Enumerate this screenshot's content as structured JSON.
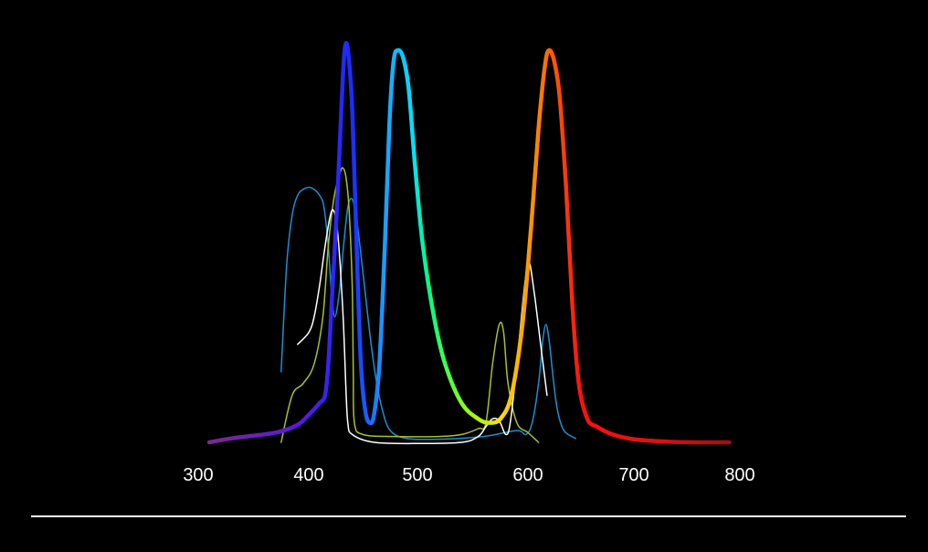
{
  "chart_data": {
    "type": "line",
    "title": "",
    "xlabel": "",
    "ylabel": "",
    "xlim": [
      300,
      800
    ],
    "ylim": [
      0,
      1
    ],
    "grid": false,
    "legend": "none",
    "xticks": [
      300,
      400,
      500,
      600,
      700,
      800
    ],
    "xtick_labels": [
      "300",
      "400",
      "500",
      "600",
      "700",
      "800"
    ],
    "background": "#000000",
    "series": [
      {
        "color_stops": [
          {
            "x": 310,
            "color": "#7a2a8a"
          },
          {
            "x": 390,
            "color": "#5a18e0"
          },
          {
            "x": 440,
            "color": "#1a2cff"
          },
          {
            "x": 470,
            "color": "#1aa0ff"
          },
          {
            "x": 495,
            "color": "#00e0ff"
          },
          {
            "x": 510,
            "color": "#00ff80"
          },
          {
            "x": 540,
            "color": "#80ff20"
          },
          {
            "x": 575,
            "color": "#ffe000"
          },
          {
            "x": 610,
            "color": "#ff8000"
          },
          {
            "x": 650,
            "color": "#ff1010"
          },
          {
            "x": 720,
            "color": "#e01010"
          },
          {
            "x": 800,
            "color": "#a01010"
          }
        ],
        "stroke_width": 4.5,
        "points": [
          [
            310,
            0.0
          ],
          [
            330,
            0.01
          ],
          [
            370,
            0.025
          ],
          [
            390,
            0.045
          ],
          [
            400,
            0.07
          ],
          [
            410,
            0.1
          ],
          [
            415,
            0.12
          ],
          [
            418,
            0.2
          ],
          [
            422,
            0.4
          ],
          [
            426,
            0.6
          ],
          [
            430,
            0.85
          ],
          [
            433,
            1.0
          ],
          [
            436,
            1.0
          ],
          [
            440,
            0.85
          ],
          [
            444,
            0.5
          ],
          [
            448,
            0.2
          ],
          [
            452,
            0.08
          ],
          [
            456,
            0.05
          ],
          [
            460,
            0.07
          ],
          [
            465,
            0.2
          ],
          [
            470,
            0.5
          ],
          [
            474,
            0.8
          ],
          [
            478,
            0.97
          ],
          [
            482,
            1.0
          ],
          [
            487,
            0.98
          ],
          [
            492,
            0.9
          ],
          [
            498,
            0.7
          ],
          [
            505,
            0.5
          ],
          [
            515,
            0.32
          ],
          [
            525,
            0.2
          ],
          [
            540,
            0.1
          ],
          [
            555,
            0.06
          ],
          [
            565,
            0.05
          ],
          [
            575,
            0.06
          ],
          [
            585,
            0.12
          ],
          [
            595,
            0.3
          ],
          [
            603,
            0.55
          ],
          [
            610,
            0.8
          ],
          [
            616,
            0.96
          ],
          [
            620,
            1.0
          ],
          [
            625,
            0.97
          ],
          [
            630,
            0.88
          ],
          [
            636,
            0.65
          ],
          [
            642,
            0.35
          ],
          [
            648,
            0.15
          ],
          [
            656,
            0.06
          ],
          [
            665,
            0.04
          ],
          [
            680,
            0.02
          ],
          [
            700,
            0.008
          ],
          [
            730,
            0.002
          ],
          [
            760,
            0.0
          ],
          [
            790,
            0.0
          ]
        ]
      },
      {
        "color": "#1a90d0",
        "stroke_width": 1.5,
        "points": [
          [
            375,
            0.18
          ],
          [
            380,
            0.45
          ],
          [
            385,
            0.58
          ],
          [
            390,
            0.63
          ],
          [
            395,
            0.645
          ],
          [
            400,
            0.65
          ],
          [
            405,
            0.645
          ],
          [
            410,
            0.63
          ],
          [
            414,
            0.6
          ],
          [
            418,
            0.5
          ],
          [
            421,
            0.38
          ],
          [
            424,
            0.32
          ],
          [
            428,
            0.38
          ],
          [
            432,
            0.5
          ],
          [
            436,
            0.6
          ],
          [
            440,
            0.62
          ],
          [
            444,
            0.57
          ],
          [
            448,
            0.48
          ],
          [
            452,
            0.38
          ],
          [
            457,
            0.26
          ],
          [
            462,
            0.16
          ],
          [
            468,
            0.08
          ],
          [
            475,
            0.03
          ],
          [
            490,
            0.01
          ],
          [
            520,
            0.008
          ],
          [
            560,
            0.015
          ],
          [
            590,
            0.03
          ],
          [
            598,
            0.02
          ],
          [
            604,
            0.05
          ],
          [
            610,
            0.15
          ],
          [
            614,
            0.26
          ],
          [
            617,
            0.3
          ],
          [
            620,
            0.26
          ],
          [
            624,
            0.16
          ],
          [
            628,
            0.08
          ],
          [
            634,
            0.03
          ],
          [
            645,
            0.01
          ]
        ]
      },
      {
        "color": "#a8c030",
        "stroke_width": 1.5,
        "points": [
          [
            375,
            0.0
          ],
          [
            385,
            0.12
          ],
          [
            395,
            0.15
          ],
          [
            405,
            0.2
          ],
          [
            413,
            0.32
          ],
          [
            418,
            0.5
          ],
          [
            423,
            0.62
          ],
          [
            428,
            0.68
          ],
          [
            431,
            0.7
          ],
          [
            434,
            0.68
          ],
          [
            437,
            0.6
          ],
          [
            440,
            0.4
          ],
          [
            441,
            0.18
          ],
          [
            442,
            0.05
          ],
          [
            450,
            0.02
          ],
          [
            480,
            0.015
          ],
          [
            520,
            0.015
          ],
          [
            540,
            0.02
          ],
          [
            555,
            0.035
          ],
          [
            562,
            0.05
          ],
          [
            568,
            0.2
          ],
          [
            574,
            0.3
          ],
          [
            578,
            0.28
          ],
          [
            582,
            0.15
          ],
          [
            590,
            0.05
          ],
          [
            600,
            0.025
          ],
          [
            610,
            0.0
          ]
        ]
      },
      {
        "color": "#ffffff",
        "stroke_width": 1.5,
        "points": [
          [
            390,
            0.25
          ],
          [
            400,
            0.28
          ],
          [
            405,
            0.32
          ],
          [
            410,
            0.4
          ],
          [
            415,
            0.5
          ],
          [
            420,
            0.58
          ],
          [
            423,
            0.59
          ],
          [
            426,
            0.55
          ],
          [
            429,
            0.45
          ],
          [
            432,
            0.3
          ],
          [
            434,
            0.15
          ],
          [
            436,
            0.05
          ],
          [
            440,
            0.02
          ],
          [
            460,
            0.0
          ],
          [
            500,
            -0.003
          ],
          [
            540,
            0.0
          ],
          [
            555,
            0.015
          ],
          [
            562,
            0.04
          ],
          [
            568,
            0.06
          ],
          [
            574,
            0.055
          ],
          [
            580,
            0.02
          ],
          [
            584,
            0.05
          ],
          [
            590,
            0.2
          ],
          [
            597,
            0.4
          ],
          [
            601,
            0.46
          ],
          [
            606,
            0.38
          ],
          [
            612,
            0.25
          ],
          [
            618,
            0.12
          ]
        ]
      }
    ]
  }
}
